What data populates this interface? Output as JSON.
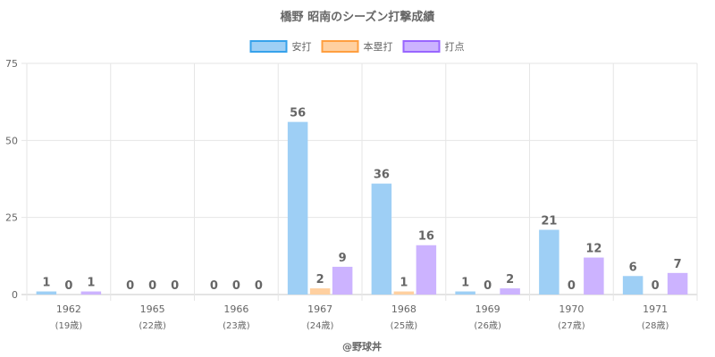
{
  "chart_data": {
    "type": "bar",
    "title": "橋野 昭南のシーズン打撃成績",
    "categories": [
      "1962",
      "1965",
      "1966",
      "1967",
      "1968",
      "1969",
      "1970",
      "1971"
    ],
    "category_sublabels": [
      "(19歳)",
      "(22歳)",
      "(23歳)",
      "(24歳)",
      "(25歳)",
      "(26歳)",
      "(27歳)",
      "(28歳)"
    ],
    "series": [
      {
        "name": "安打",
        "values": [
          1,
          0,
          0,
          56,
          36,
          1,
          21,
          6
        ],
        "color": "#9ecff5",
        "border": "#36a2eb"
      },
      {
        "name": "本塁打",
        "values": [
          0,
          0,
          0,
          2,
          1,
          0,
          0,
          0
        ],
        "color": "#ffd0a0",
        "border": "#ff9f40"
      },
      {
        "name": "打点",
        "values": [
          1,
          0,
          0,
          9,
          16,
          2,
          12,
          7
        ],
        "color": "#ccb3ff",
        "border": "#9966ff"
      }
    ],
    "yticks": [
      0,
      25,
      50,
      75
    ],
    "ylim": [
      0,
      75
    ],
    "xlabel": "@野球丼",
    "ylabel": "",
    "grid": true,
    "legend_position": "top"
  }
}
